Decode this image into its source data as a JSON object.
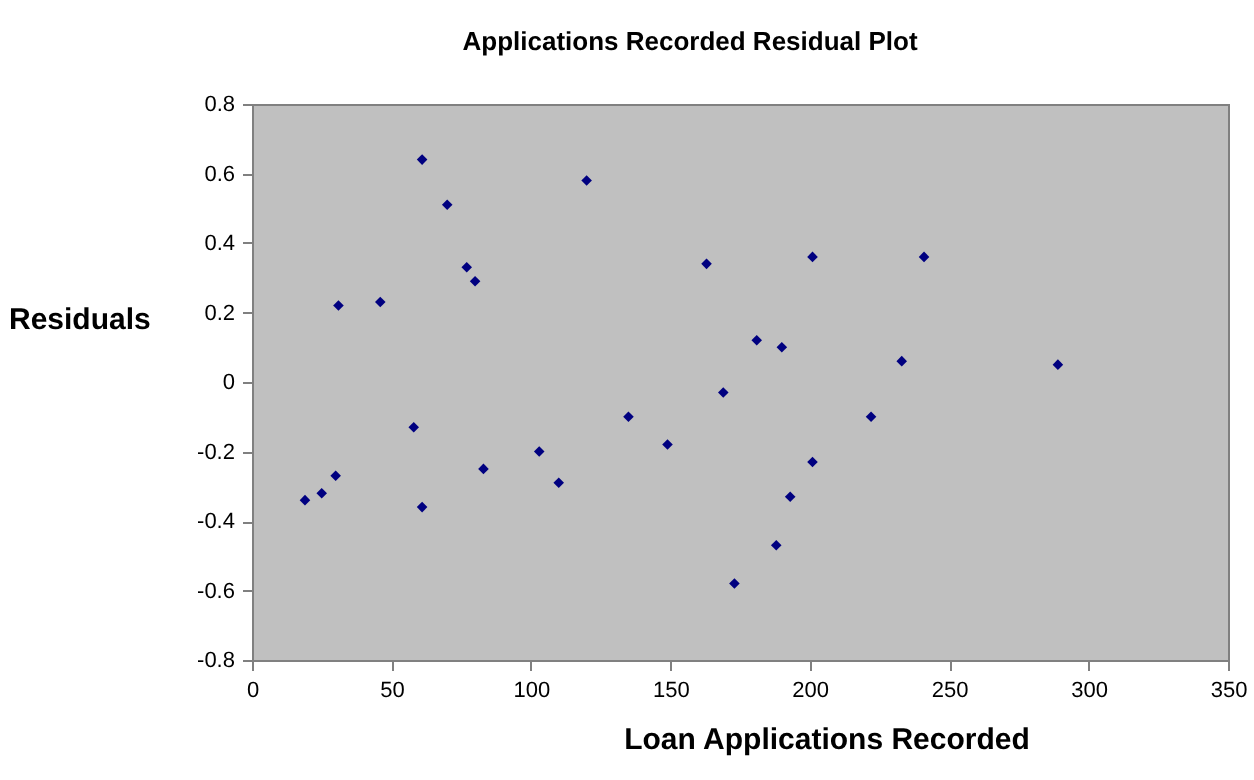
{
  "chart_data": {
    "type": "scatter",
    "title": "Applications Recorded  Residual Plot",
    "xlabel": "Loan Applications Recorded",
    "ylabel": "Residuals",
    "x": [
      19,
      25,
      30,
      31,
      46,
      58,
      61,
      61,
      70,
      77,
      80,
      83,
      103,
      110,
      120,
      135,
      149,
      163,
      169,
      173,
      181,
      188,
      190,
      193,
      201,
      201,
      222,
      233,
      241,
      289
    ],
    "series": [
      {
        "color": "#000080",
        "values": [
          -0.34,
          -0.32,
          -0.27,
          0.22,
          0.23,
          -0.13,
          0.64,
          -0.36,
          0.51,
          0.33,
          0.29,
          -0.25,
          -0.2,
          -0.29,
          0.58,
          -0.1,
          -0.18,
          0.34,
          -0.03,
          -0.58,
          0.12,
          -0.47,
          0.1,
          -0.33,
          0.36,
          -0.23,
          -0.1,
          0.06,
          0.36,
          0.05
        ]
      }
    ],
    "xlim": [
      0,
      350
    ],
    "xticks": [
      0,
      50,
      100,
      150,
      200,
      250,
      300,
      350
    ],
    "ylim": [
      -0.8,
      0.8
    ],
    "yticks": [
      -0.8,
      -0.6,
      -0.4,
      -0.2,
      0,
      0.2,
      0.4,
      0.6,
      0.8
    ],
    "marker": "diamond",
    "grid": false
  }
}
